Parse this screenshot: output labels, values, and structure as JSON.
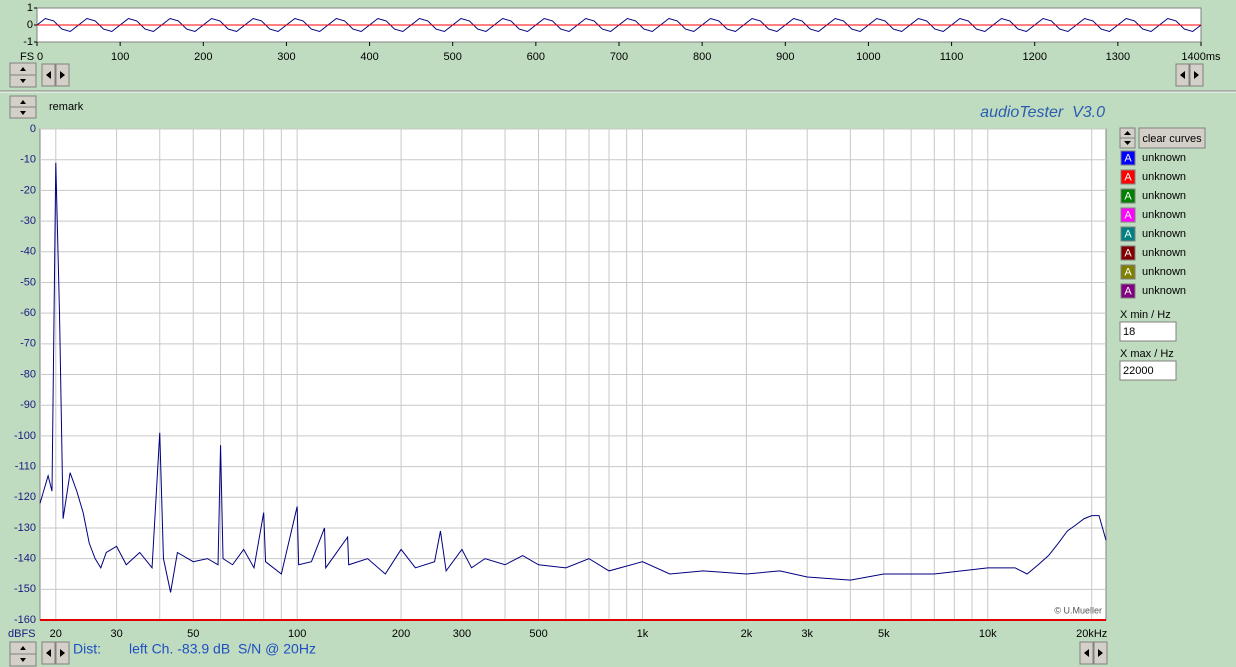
{
  "ui": {
    "remark": "remark",
    "app_title": "audioTester  V3.0",
    "copyright": "© U.Mueller",
    "status_label": "Dist:",
    "status_text": "left Ch. -83.9 dB  S/N @ 20Hz",
    "clear_button": "clear curves",
    "curves": [
      {
        "label": "A",
        "name": "unknown",
        "color": "#0000ff"
      },
      {
        "label": "A",
        "name": "unknown",
        "color": "#ff0000"
      },
      {
        "label": "A",
        "name": "unknown",
        "color": "#008000"
      },
      {
        "label": "A",
        "name": "unknown",
        "color": "#ff00ff"
      },
      {
        "label": "A",
        "name": "unknown",
        "color": "#008080"
      },
      {
        "label": "A",
        "name": "unknown",
        "color": "#800000"
      },
      {
        "label": "A",
        "name": "unknown",
        "color": "#808000"
      },
      {
        "label": "A",
        "name": "unknown",
        "color": "#800080"
      }
    ],
    "xmin_label": "X min / Hz",
    "xmin_value": 18,
    "xmax_label": "X max / Hz",
    "xmax_value": 22000
  },
  "chart_data": [
    {
      "type": "line",
      "ylabel": "FS",
      "xlim": [
        0,
        1400
      ],
      "ylim": [
        -1,
        1
      ],
      "yticks": [
        1,
        0,
        -1
      ],
      "xticks": [
        0,
        100,
        200,
        300,
        400,
        500,
        600,
        700,
        800,
        900,
        1000,
        1100,
        1200,
        1300,
        {
          "value": 1400,
          "label": "1400ms"
        }
      ],
      "grid": false,
      "series": [
        {
          "color": "#000080",
          "x": [
            0,
            10,
            20,
            30,
            40,
            50,
            60,
            70,
            80,
            90,
            100,
            110,
            120,
            130,
            140,
            150,
            160,
            170,
            180,
            190,
            200,
            210,
            220,
            230,
            240,
            250,
            260,
            270,
            280,
            290,
            300,
            310,
            320,
            330,
            340,
            350,
            360,
            370,
            380,
            390,
            400,
            410,
            420,
            430,
            440,
            450,
            460,
            470,
            480,
            490,
            500,
            510,
            520,
            530,
            540,
            550,
            560,
            570,
            580,
            590,
            600,
            610,
            620,
            630,
            640,
            650,
            660,
            670,
            680,
            690,
            700,
            710,
            720,
            730,
            740,
            750,
            760,
            770,
            780,
            790,
            800,
            810,
            820,
            830,
            840,
            850,
            860,
            870,
            880,
            890,
            900,
            910,
            920,
            930,
            940,
            950,
            960,
            970,
            980,
            990,
            1000,
            1010,
            1020,
            1030,
            1040,
            1050,
            1060,
            1070,
            1080,
            1090,
            1100,
            1110,
            1120,
            1130,
            1140,
            1150,
            1160,
            1170,
            1180,
            1190,
            1200,
            1210,
            1220,
            1230,
            1240,
            1250,
            1260,
            1270,
            1280,
            1290,
            1300,
            1310,
            1320,
            1330,
            1340,
            1350,
            1360,
            1370,
            1380,
            1390,
            1400
          ],
          "values": [
            0,
            0.38,
            0.24,
            -0.24,
            -0.38,
            0,
            0.38,
            0.24,
            -0.24,
            -0.38,
            0,
            0.38,
            0.24,
            -0.24,
            -0.38,
            0,
            0.38,
            0.24,
            -0.24,
            -0.38,
            0,
            0.38,
            0.24,
            -0.24,
            -0.38,
            0,
            0.38,
            0.24,
            -0.24,
            -0.38,
            0,
            0.38,
            0.24,
            -0.24,
            -0.38,
            0,
            0.38,
            0.24,
            -0.24,
            -0.38,
            0,
            0.38,
            0.24,
            -0.24,
            -0.38,
            0,
            0.38,
            0.24,
            -0.24,
            -0.38,
            0,
            0.38,
            0.24,
            -0.24,
            -0.38,
            0,
            0.38,
            0.24,
            -0.24,
            -0.38,
            0,
            0.38,
            0.24,
            -0.24,
            -0.38,
            0,
            0.38,
            0.24,
            -0.24,
            -0.38,
            0,
            0.38,
            0.24,
            -0.24,
            -0.38,
            0,
            0.38,
            0.24,
            -0.24,
            -0.38,
            0,
            0.38,
            0.24,
            -0.24,
            -0.38,
            0,
            0.38,
            0.24,
            -0.24,
            -0.38,
            0,
            0.38,
            0.24,
            -0.24,
            -0.38,
            0,
            0.38,
            0.24,
            -0.24,
            -0.38,
            0,
            0.38,
            0.24,
            -0.24,
            -0.38,
            0,
            0.38,
            0.24,
            -0.24,
            -0.38,
            0,
            0.38,
            0.24,
            -0.24,
            -0.38,
            0,
            0.38,
            0.24,
            -0.24,
            -0.38,
            0,
            0.38,
            0.24,
            -0.24,
            -0.38,
            0,
            0.38,
            0.24,
            -0.24,
            -0.38,
            0,
            0.38,
            0.24,
            -0.24,
            -0.38,
            0,
            0.38,
            0.24,
            -0.24,
            -0.38,
            0
          ]
        },
        {
          "color": "#ff0000",
          "x": [
            0,
            1400
          ],
          "values": [
            0,
            0
          ]
        }
      ]
    },
    {
      "type": "line",
      "ylabel": "dBFS",
      "xscale": "log",
      "xlim": [
        18,
        22000
      ],
      "ylim": [
        -160,
        0
      ],
      "yticks": [
        0,
        -10,
        -20,
        -30,
        -40,
        -50,
        -60,
        -70,
        -80,
        -90,
        -100,
        -110,
        -120,
        -130,
        -140,
        -150,
        -160
      ],
      "xticks": [
        20,
        30,
        50,
        100,
        200,
        300,
        500,
        {
          "value": 1000,
          "label": "1k"
        },
        {
          "value": 2000,
          "label": "2k"
        },
        {
          "value": 3000,
          "label": "3k"
        },
        {
          "value": 5000,
          "label": "5k"
        },
        {
          "value": 10000,
          "label": "10k"
        },
        {
          "value": 20000,
          "label": "20kHz"
        }
      ],
      "xminorticks": [
        40,
        60,
        70,
        80,
        90,
        400,
        600,
        700,
        800,
        900,
        4000,
        6000,
        7000,
        8000,
        9000
      ],
      "grid": true,
      "series": [
        {
          "color": "#000080",
          "x": [
            18,
            19,
            19.5,
            20,
            20.5,
            21,
            22,
            23,
            24,
            25,
            26,
            27,
            28,
            30,
            32,
            35,
            38,
            40,
            41,
            43,
            45,
            50,
            55,
            59,
            60,
            61,
            65,
            70,
            75,
            80,
            81,
            90,
            100,
            101,
            110,
            120,
            121,
            140,
            141,
            160,
            180,
            200,
            220,
            250,
            260,
            270,
            300,
            320,
            350,
            400,
            450,
            500,
            600,
            700,
            800,
            1000,
            1200,
            1500,
            2000,
            2500,
            3000,
            4000,
            5000,
            7000,
            10000,
            12000,
            13000,
            14000,
            15000,
            16000,
            17000,
            18000,
            19000,
            20000,
            21000,
            22000
          ],
          "values": [
            -122,
            -113,
            -118,
            -11,
            -60,
            -127,
            -112,
            -118,
            -125,
            -135,
            -140,
            -143,
            -138,
            -136,
            -142,
            -138,
            -143,
            -99,
            -140,
            -151,
            -138,
            -141,
            -140,
            -142,
            -103,
            -140,
            -142,
            -137,
            -143,
            -125,
            -141,
            -145,
            -123,
            -142,
            -141,
            -130,
            -143,
            -133,
            -142,
            -140,
            -145,
            -137,
            -143,
            -141,
            -131,
            -144,
            -137,
            -143,
            -140,
            -142,
            -139,
            -142,
            -143,
            -140,
            -144,
            -141,
            -145,
            -144,
            -145,
            -144,
            -146,
            -147,
            -145,
            -145,
            -143,
            -143,
            -145,
            -142,
            -139,
            -135,
            -131,
            -129,
            -127,
            -126,
            -126,
            -134
          ]
        }
      ]
    }
  ]
}
